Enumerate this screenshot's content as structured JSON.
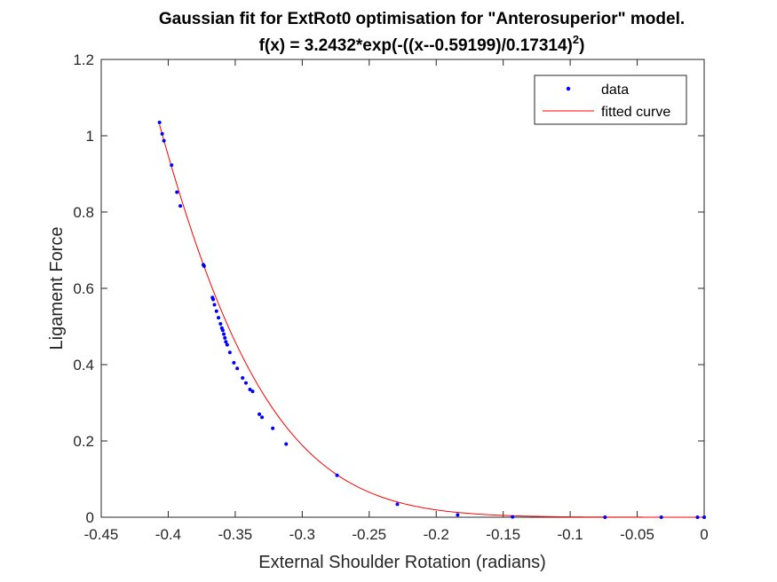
{
  "chart_data": {
    "type": "scatter",
    "title_line1": "Gaussian fit for ExtRot0 optimisation for \"Anterosuperior\" model.",
    "title_line2_prefix": "f(x) = 3.2432*exp(-((x--0.59199)/0.17314)",
    "title_line2_exponent": "2",
    "title_line2_suffix": ")",
    "xlabel": "External Shoulder Rotation (radians)",
    "ylabel": "Ligament Force",
    "xlim": [
      -0.45,
      0
    ],
    "ylim": [
      0,
      1.2
    ],
    "x_ticks": [
      -0.45,
      -0.4,
      -0.35,
      -0.3,
      -0.25,
      -0.2,
      -0.15,
      -0.1,
      -0.05,
      0
    ],
    "x_tick_labels": [
      "-0.45",
      "-0.4",
      "-0.35",
      "-0.3",
      "-0.25",
      "-0.2",
      "-0.15",
      "-0.1",
      "-0.05",
      "0"
    ],
    "y_ticks": [
      0,
      0.2,
      0.4,
      0.6,
      0.8,
      1,
      1.2
    ],
    "y_tick_labels": [
      "0",
      "0.2",
      "0.4",
      "0.6",
      "0.8",
      "1",
      "1.2"
    ],
    "grid": false,
    "legend_position": "top-right",
    "fit": {
      "a": 3.2432,
      "b": -0.59199,
      "c": 0.17314
    },
    "series": [
      {
        "name": "data",
        "kind": "points",
        "color": "#0000ff",
        "x": [
          -0.4065,
          -0.4045,
          -0.4032,
          -0.3975,
          -0.3935,
          -0.391,
          -0.3738,
          -0.3732,
          -0.367,
          -0.3665,
          -0.3655,
          -0.364,
          -0.3625,
          -0.361,
          -0.36,
          -0.3593,
          -0.3585,
          -0.3577,
          -0.357,
          -0.356,
          -0.354,
          -0.351,
          -0.3485,
          -0.3445,
          -0.342,
          -0.339,
          -0.337,
          -0.332,
          -0.33,
          -0.322,
          -0.312,
          -0.274,
          -0.229,
          -0.184,
          -0.143,
          -0.074,
          -0.032,
          -0.005,
          0.0
        ],
        "y": [
          1.035,
          1.005,
          0.987,
          0.923,
          0.852,
          0.816,
          0.662,
          0.658,
          0.576,
          0.571,
          0.557,
          0.54,
          0.523,
          0.507,
          0.496,
          0.49,
          0.48,
          0.47,
          0.46,
          0.452,
          0.432,
          0.405,
          0.39,
          0.365,
          0.352,
          0.335,
          0.33,
          0.27,
          0.262,
          0.233,
          0.192,
          0.11,
          0.034,
          0.006,
          0.001,
          0.0,
          0.0,
          0.0,
          0.0
        ]
      },
      {
        "name": "fitted curve",
        "kind": "line",
        "color": "#ff0000",
        "x_range": [
          -0.4065,
          0
        ]
      }
    ]
  }
}
